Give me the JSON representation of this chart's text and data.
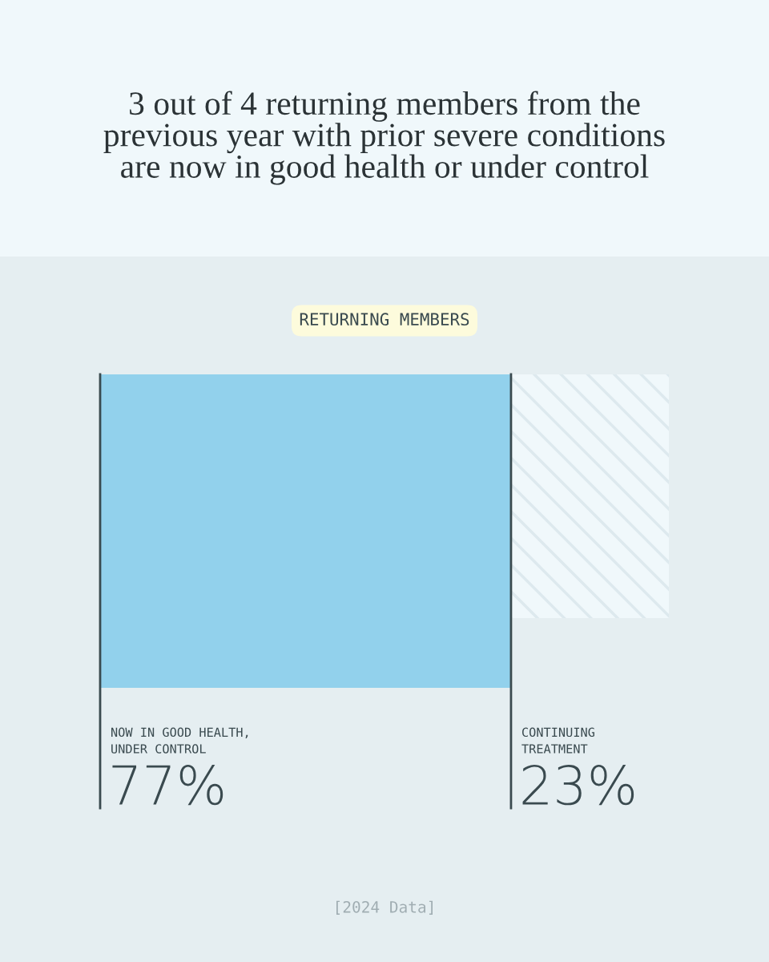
{
  "chart_data": {
    "type": "other",
    "title": "3 out of 4 returning members from the\nprevious year with prior severe conditions\nare now in good health or under control",
    "subtitle": "RETURNING MEMBERS",
    "categories": [
      "NOW IN GOOD HEALTH,\nUNDER CONTROL",
      "CONTINUING\nTREATMENT"
    ],
    "values": [
      77,
      23
    ],
    "value_labels": [
      "77%",
      "23%"
    ],
    "colors": [
      "#92d1ec",
      "#f0f8fb"
    ],
    "annotations": [
      "[2024 Data]"
    ]
  }
}
